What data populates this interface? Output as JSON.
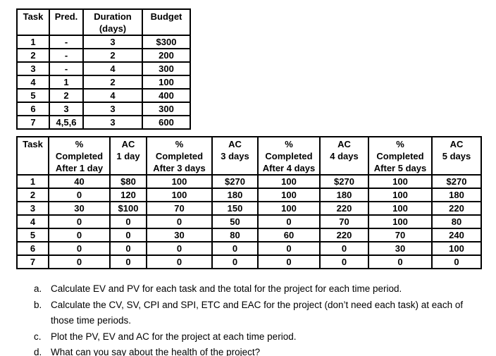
{
  "table1": {
    "headers": [
      "Task",
      "Pred.",
      "Duration\n(days)",
      "Budget"
    ],
    "rows": [
      [
        "1",
        "-",
        "3",
        "$300"
      ],
      [
        "2",
        "-",
        "2",
        "200"
      ],
      [
        "3",
        "-",
        "4",
        "300"
      ],
      [
        "4",
        "1",
        "2",
        "100"
      ],
      [
        "5",
        "2",
        "4",
        "400"
      ],
      [
        "6",
        "3",
        "3",
        "300"
      ],
      [
        "7",
        "4,5,6",
        "3",
        "600"
      ]
    ]
  },
  "table2": {
    "headers": [
      "Task",
      "%\nCompleted\nAfter 1 day",
      "AC\n1 day",
      "%\nCompleted\nAfter 3 days",
      "AC\n3 days",
      "%\nCompleted\nAfter 4 days",
      "AC\n4 days",
      "%\nCompleted\nAfter 5 days",
      "AC\n5 days"
    ],
    "rows": [
      [
        "1",
        "40",
        "$80",
        "100",
        "$270",
        "100",
        "$270",
        "100",
        "$270"
      ],
      [
        "2",
        "0",
        "120",
        "100",
        "180",
        "100",
        "180",
        "100",
        "180"
      ],
      [
        "3",
        "30",
        "$100",
        "70",
        "150",
        "100",
        "220",
        "100",
        "220"
      ],
      [
        "4",
        "0",
        "0",
        "0",
        "50",
        "0",
        "70",
        "100",
        "80"
      ],
      [
        "5",
        "0",
        "0",
        "30",
        "80",
        "60",
        "220",
        "70",
        "240"
      ],
      [
        "6",
        "0",
        "0",
        "0",
        "0",
        "0",
        "0",
        "30",
        "100"
      ],
      [
        "7",
        "0",
        "0",
        "0",
        "0",
        "0",
        "0",
        "0",
        "0"
      ]
    ]
  },
  "questions": [
    {
      "letter": "a.",
      "text": "Calculate EV and PV for each task and the total for the project for each time period."
    },
    {
      "letter": "b.",
      "text": "Calculate the CV, SV, CPI and SPI, ETC and EAC for the project (don’t need each task) at each of those time periods."
    },
    {
      "letter": "c.",
      "text": "Plot the PV, EV and AC for the project at each time period."
    },
    {
      "letter": "d.",
      "text": "What can you say about the health of the project?"
    }
  ]
}
